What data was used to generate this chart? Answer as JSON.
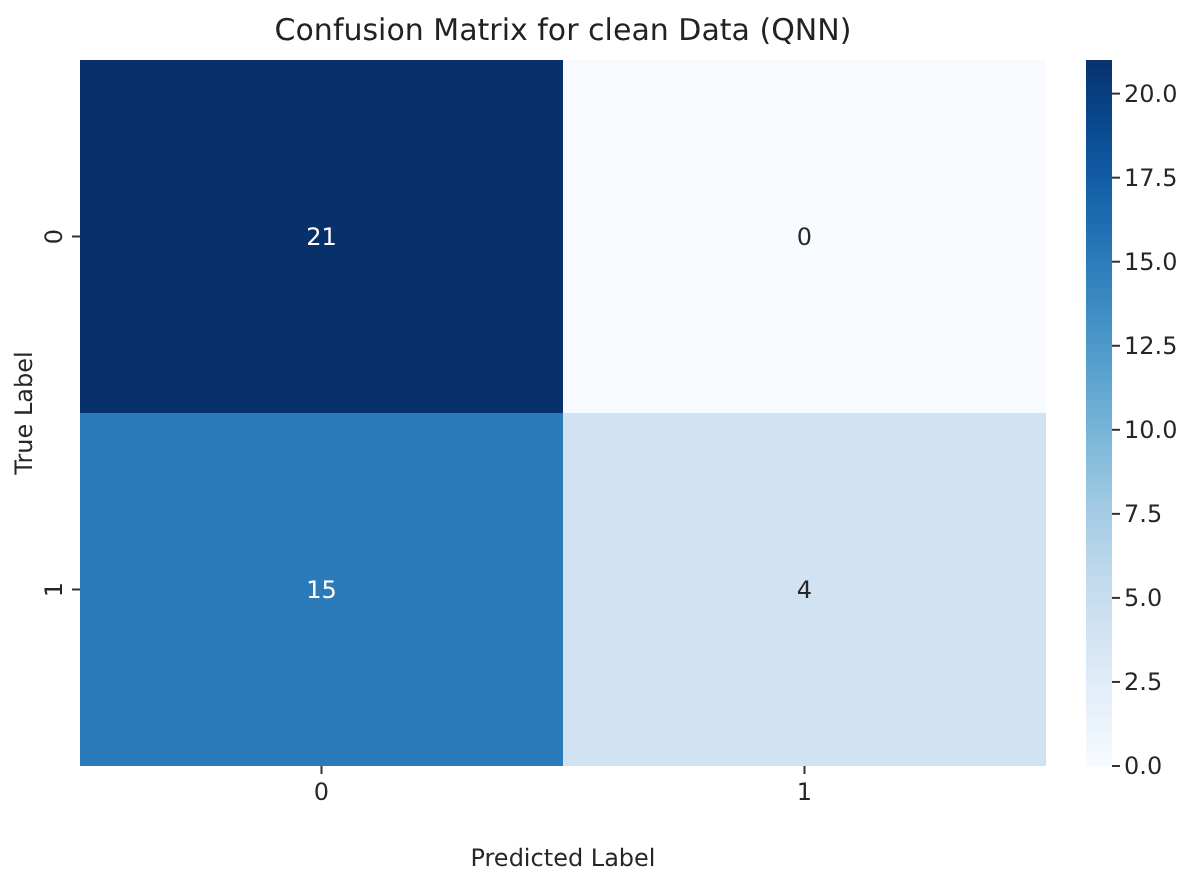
{
  "chart_data": {
    "type": "heatmap",
    "title": "Confusion Matrix for clean Data (QNN)",
    "xlabel": "Predicted Label",
    "ylabel": "True Label",
    "categories": [
      "0",
      "1"
    ],
    "y_categories": [
      "0",
      "1"
    ],
    "cells": [
      [
        21,
        0
      ],
      [
        15,
        4
      ]
    ],
    "data_labels": true,
    "clim": [
      0,
      21
    ],
    "cticks": [
      {
        "value": 0,
        "label": "0.0"
      },
      {
        "value": 2.5,
        "label": "2.5"
      },
      {
        "value": 5,
        "label": "5.0"
      },
      {
        "value": 7.5,
        "label": "7.5"
      },
      {
        "value": 10,
        "label": "10.0"
      },
      {
        "value": 12.5,
        "label": "12.5"
      },
      {
        "value": 15,
        "label": "15.0"
      },
      {
        "value": 17.5,
        "label": "17.5"
      },
      {
        "value": 20,
        "label": "20.0"
      }
    ]
  }
}
